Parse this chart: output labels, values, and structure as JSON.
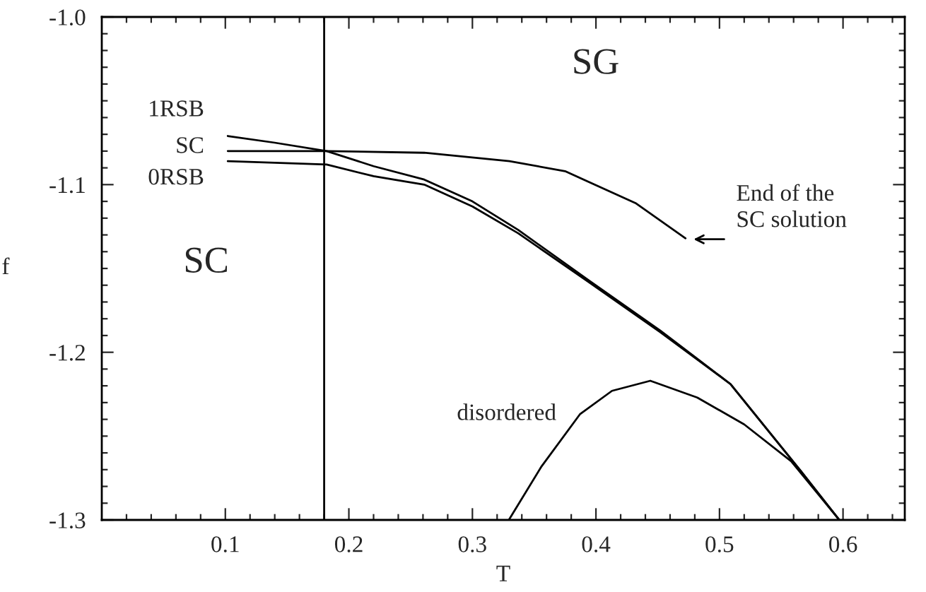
{
  "chart_data": {
    "type": "line",
    "xlabel": "T",
    "ylabel": "f",
    "xlim": [
      0,
      0.65
    ],
    "ylim": [
      -1.3,
      -1.0
    ],
    "xticks": [
      {
        "value": 0.02,
        "label": null
      },
      {
        "value": 0.04,
        "label": null
      },
      {
        "value": 0.06,
        "label": null
      },
      {
        "value": 0.08,
        "label": null
      },
      0.1,
      {
        "value": 0.12,
        "label": null
      },
      {
        "value": 0.14,
        "label": null
      },
      {
        "value": 0.16,
        "label": null
      },
      {
        "value": 0.18,
        "label": null
      },
      0.2,
      {
        "value": 0.22,
        "label": null
      },
      {
        "value": 0.24,
        "label": null
      },
      {
        "value": 0.26,
        "label": null
      },
      {
        "value": 0.28,
        "label": null
      },
      0.3,
      {
        "value": 0.32,
        "label": null
      },
      {
        "value": 0.34,
        "label": null
      },
      {
        "value": 0.36,
        "label": null
      },
      {
        "value": 0.38,
        "label": null
      },
      0.4,
      {
        "value": 0.42,
        "label": null
      },
      {
        "value": 0.44,
        "label": null
      },
      {
        "value": 0.46,
        "label": null
      },
      {
        "value": 0.48,
        "label": null
      },
      0.5,
      {
        "value": 0.52,
        "label": null
      },
      {
        "value": 0.54,
        "label": null
      },
      {
        "value": 0.56,
        "label": null
      },
      {
        "value": 0.58,
        "label": null
      },
      0.6,
      {
        "value": 0.62,
        "label": null
      },
      {
        "value": 0.64,
        "label": null
      }
    ],
    "yticks": [
      {
        "value": -1.3,
        "label": "-1.3"
      },
      {
        "value": -1.29,
        "label": null
      },
      {
        "value": -1.28,
        "label": null
      },
      {
        "value": -1.27,
        "label": null
      },
      {
        "value": -1.26,
        "label": null
      },
      {
        "value": -1.25,
        "label": null
      },
      {
        "value": -1.24,
        "label": null
      },
      {
        "value": -1.23,
        "label": null
      },
      {
        "value": -1.22,
        "label": null
      },
      {
        "value": -1.21,
        "label": null
      },
      {
        "value": -1.2,
        "label": "-1.2"
      },
      {
        "value": -1.19,
        "label": null
      },
      {
        "value": -1.18,
        "label": null
      },
      {
        "value": -1.17,
        "label": null
      },
      {
        "value": -1.16,
        "label": null
      },
      {
        "value": -1.15,
        "label": null
      },
      {
        "value": -1.14,
        "label": null
      },
      {
        "value": -1.13,
        "label": null
      },
      {
        "value": -1.12,
        "label": null
      },
      {
        "value": -1.11,
        "label": null
      },
      {
        "value": -1.1,
        "label": "-1.1"
      },
      {
        "value": -1.09,
        "label": null
      },
      {
        "value": -1.08,
        "label": null
      },
      {
        "value": -1.07,
        "label": null
      },
      {
        "value": -1.06,
        "label": null
      },
      {
        "value": -1.05,
        "label": null
      },
      {
        "value": -1.04,
        "label": null
      },
      {
        "value": -1.03,
        "label": null
      },
      {
        "value": -1.02,
        "label": null
      },
      {
        "value": -1.01,
        "label": null
      },
      {
        "value": -1.0,
        "label": "-1.0"
      }
    ],
    "grid": false,
    "legend": false,
    "marker": "none",
    "line_style": "solid",
    "series": [
      {
        "name": "1RSB",
        "color": "#000000",
        "x": [
          0.102,
          0.14,
          0.182,
          0.22,
          0.261,
          0.3,
          0.337,
          0.394,
          0.452,
          0.509,
          0.566,
          0.597
        ],
        "values": [
          -1.071,
          -1.075,
          -1.08,
          -1.089,
          -1.097,
          -1.11,
          -1.127,
          -1.157,
          -1.187,
          -1.219,
          -1.271,
          -1.3
        ]
      },
      {
        "name": "SC",
        "color": "#000000",
        "x": [
          0.102,
          0.182,
          0.261,
          0.33,
          0.375,
          0.432,
          0.4725
        ],
        "values": [
          -1.08,
          -1.08,
          -1.081,
          -1.086,
          -1.092,
          -1.111,
          -1.132
        ]
      },
      {
        "name": "0RSB",
        "color": "#000000",
        "x": [
          0.102,
          0.14,
          0.182,
          0.22,
          0.261,
          0.3,
          0.337,
          0.394,
          0.452,
          0.509,
          0.566,
          0.597
        ],
        "values": [
          -1.086,
          -1.087,
          -1.088,
          -1.095,
          -1.1,
          -1.113,
          -1.129,
          -1.158,
          -1.188,
          -1.219,
          -1.271,
          -1.3
        ]
      },
      {
        "name": "disordered",
        "color": "#000000",
        "x": [
          0.3295,
          0.356,
          0.387,
          0.413,
          0.444,
          0.482,
          0.52,
          0.558,
          0.597
        ],
        "values": [
          -1.3,
          -1.268,
          -1.237,
          -1.223,
          -1.217,
          -1.227,
          -1.243,
          -1.265,
          -1.3
        ]
      }
    ],
    "ref_lines": [
      {
        "axis": "x",
        "value": 0.18,
        "color": "#000000"
      }
    ],
    "annotations": [
      "SG",
      "SC",
      "End of the\nSC solution"
    ]
  }
}
